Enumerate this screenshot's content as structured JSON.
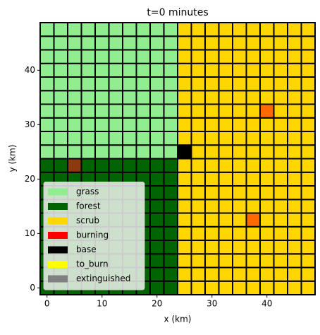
{
  "chart_data": {
    "type": "grid",
    "title": "t=0 minutes",
    "x_label": "x (km)",
    "y_label": "y (km)",
    "x": [
      0,
      2.5,
      5,
      7.5,
      10,
      12.5,
      15,
      17.5,
      20,
      22.5,
      25,
      27.5,
      30,
      32.5,
      35,
      37.5,
      40,
      42.5,
      45,
      47.5
    ],
    "y": [
      0,
      2.5,
      5,
      7.5,
      10,
      12.5,
      15,
      17.5,
      20,
      22.5,
      25,
      27.5,
      30,
      32.5,
      35,
      37.5,
      40,
      42.5,
      45,
      47.5
    ],
    "cell_size": 2.5,
    "cell_colors": [
      "#90ee90",
      "#006400",
      "#ffd700",
      "#000000",
      "#8b3a0f",
      "#ff6a00"
    ],
    "cells": [
      [
        1,
        1,
        1,
        1,
        1,
        1,
        1,
        1,
        1,
        1,
        2,
        2,
        2,
        2,
        2,
        2,
        2,
        2,
        2,
        2
      ],
      [
        1,
        1,
        1,
        1,
        1,
        1,
        1,
        1,
        1,
        1,
        2,
        2,
        2,
        2,
        2,
        2,
        2,
        2,
        2,
        2
      ],
      [
        1,
        1,
        1,
        1,
        1,
        1,
        1,
        1,
        1,
        1,
        2,
        2,
        2,
        2,
        2,
        2,
        2,
        2,
        2,
        2
      ],
      [
        1,
        1,
        1,
        1,
        1,
        1,
        1,
        1,
        1,
        1,
        2,
        2,
        2,
        2,
        2,
        2,
        2,
        2,
        2,
        2
      ],
      [
        1,
        1,
        1,
        1,
        1,
        1,
        1,
        1,
        1,
        1,
        2,
        2,
        2,
        2,
        2,
        2,
        2,
        2,
        2,
        2
      ],
      [
        1,
        1,
        1,
        1,
        1,
        1,
        1,
        1,
        1,
        1,
        2,
        2,
        2,
        2,
        2,
        5,
        2,
        2,
        2,
        2
      ],
      [
        1,
        1,
        1,
        1,
        1,
        1,
        1,
        1,
        1,
        1,
        2,
        2,
        2,
        2,
        2,
        2,
        2,
        2,
        2,
        2
      ],
      [
        1,
        1,
        1,
        1,
        1,
        1,
        1,
        1,
        1,
        1,
        2,
        2,
        2,
        2,
        2,
        2,
        2,
        2,
        2,
        2
      ],
      [
        1,
        1,
        1,
        1,
        1,
        1,
        1,
        1,
        1,
        1,
        2,
        2,
        2,
        2,
        2,
        2,
        2,
        2,
        2,
        2
      ],
      [
        1,
        1,
        4,
        1,
        1,
        1,
        1,
        1,
        1,
        1,
        2,
        2,
        2,
        2,
        2,
        2,
        2,
        2,
        2,
        2
      ],
      [
        0,
        0,
        0,
        0,
        0,
        0,
        0,
        0,
        0,
        0,
        3,
        2,
        2,
        2,
        2,
        2,
        2,
        2,
        2,
        2
      ],
      [
        0,
        0,
        0,
        0,
        0,
        0,
        0,
        0,
        0,
        0,
        2,
        2,
        2,
        2,
        2,
        2,
        2,
        2,
        2,
        2
      ],
      [
        0,
        0,
        0,
        0,
        0,
        0,
        0,
        0,
        0,
        0,
        2,
        2,
        2,
        2,
        2,
        2,
        2,
        2,
        2,
        2
      ],
      [
        0,
        0,
        0,
        0,
        0,
        0,
        0,
        0,
        0,
        0,
        2,
        2,
        2,
        2,
        2,
        2,
        5,
        2,
        2,
        2
      ],
      [
        0,
        0,
        0,
        0,
        0,
        0,
        0,
        0,
        0,
        0,
        2,
        2,
        2,
        2,
        2,
        2,
        2,
        2,
        2,
        2
      ],
      [
        0,
        0,
        0,
        0,
        0,
        0,
        0,
        0,
        0,
        0,
        2,
        2,
        2,
        2,
        2,
        2,
        2,
        2,
        2,
        2
      ],
      [
        0,
        0,
        0,
        0,
        0,
        0,
        0,
        0,
        0,
        0,
        2,
        2,
        2,
        2,
        2,
        2,
        2,
        2,
        2,
        2
      ],
      [
        0,
        0,
        0,
        0,
        0,
        0,
        0,
        0,
        0,
        0,
        2,
        2,
        2,
        2,
        2,
        2,
        2,
        2,
        2,
        2
      ],
      [
        0,
        0,
        0,
        0,
        0,
        0,
        0,
        0,
        0,
        0,
        2,
        2,
        2,
        2,
        2,
        2,
        2,
        2,
        2,
        2
      ],
      [
        0,
        0,
        0,
        0,
        0,
        0,
        0,
        0,
        0,
        0,
        2,
        2,
        2,
        2,
        2,
        2,
        2,
        2,
        2,
        2
      ]
    ],
    "series": [
      {
        "name": "grass",
        "color": "#90ee90"
      },
      {
        "name": "forest",
        "color": "#006400"
      },
      {
        "name": "scrub",
        "color": "#ffd700"
      },
      {
        "name": "burning",
        "color": "#ff0000"
      },
      {
        "name": "base",
        "color": "#000000"
      },
      {
        "name": "to_burn",
        "color": "#ffff00"
      },
      {
        "name": "extinguished",
        "color": "#808080"
      }
    ],
    "legend": "lower left",
    "xlim": [
      -1.25,
      48.75
    ],
    "ylim": [
      -1.25,
      48.75
    ],
    "xticks": [
      0,
      10,
      20,
      30,
      40
    ],
    "yticks": [
      0,
      10,
      20,
      30,
      40
    ]
  }
}
